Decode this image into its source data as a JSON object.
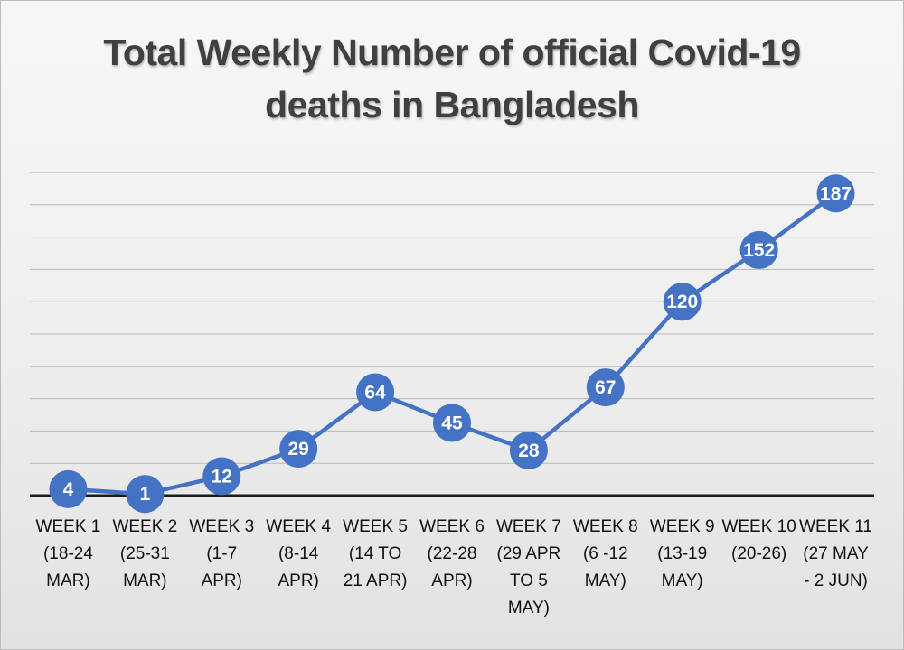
{
  "chart_data": {
    "type": "line",
    "title_lines": [
      "Total Weekly Number of official Covid-19",
      "deaths in Bangladesh"
    ],
    "categories": [
      [
        "WEEK 1",
        "(18-24",
        "MAR)"
      ],
      [
        "WEEK 2",
        "(25-31",
        "MAR)"
      ],
      [
        "WEEK 3",
        "(1-7",
        "APR)"
      ],
      [
        "WEEK 4",
        "(8-14",
        "APR)"
      ],
      [
        "WEEK 5",
        "(14 TO",
        "21 APR)"
      ],
      [
        "WEEK 6",
        "(22-28",
        "APR)"
      ],
      [
        "WEEK 7",
        "(29 APR",
        "TO 5",
        "MAY)"
      ],
      [
        "WEEK 8",
        "(6 -12",
        "MAY)"
      ],
      [
        "WEEK 9",
        "(13-19",
        "MAY)"
      ],
      [
        "WEEK 10",
        "(20-26)"
      ],
      [
        "WEEK 11",
        "(27 MAY",
        "- 2 JUN)"
      ]
    ],
    "series": [
      {
        "values": [
          4,
          1,
          12,
          29,
          64,
          45,
          28,
          67,
          120,
          152,
          187
        ]
      }
    ],
    "data_labels": [
      "4",
      "1",
      "12",
      "29",
      "64",
      "45",
      "28",
      "67",
      "120",
      "152",
      "187"
    ],
    "ylim": [
      0,
      200
    ],
    "grid": true,
    "legend": "none",
    "colors": {
      "line": "#4472C4",
      "marker": "#4472C4",
      "label": "#ffffff",
      "grid": "#b8b8b8",
      "axis": "#1a1a1a"
    }
  }
}
